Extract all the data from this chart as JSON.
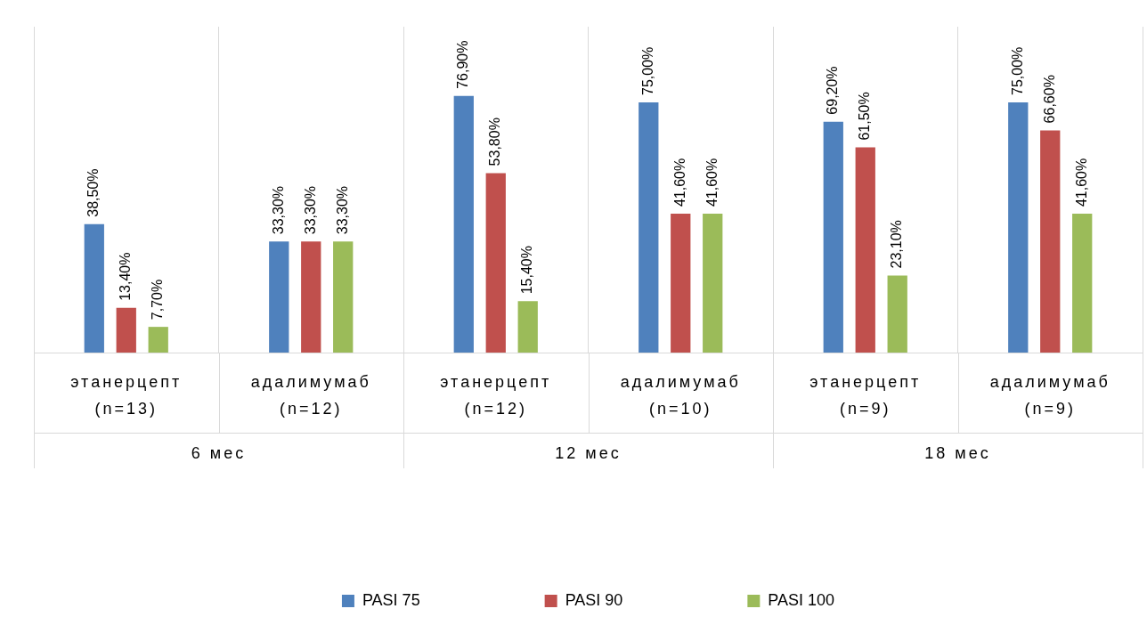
{
  "chart_data": {
    "type": "bar",
    "categories": [
      "этанерцепт (n=13)",
      "адалимумаб (n=12)",
      "этанерцепт (n=12)",
      "адалимумаб (n=10)",
      "этанерцепт (n=9)",
      "адалимумаб (n=9)"
    ],
    "annotations": [
      "6 мес",
      "12 мес",
      "18 мес"
    ],
    "series": [
      {
        "name": "PASI 75",
        "color": "#4f81bd",
        "values": [
          38.5,
          33.3,
          76.9,
          75.0,
          69.2,
          75.0
        ],
        "value_labels": [
          "38,50%",
          "33,30%",
          "76,90%",
          "75,00%",
          "69,20%",
          "75,00%"
        ]
      },
      {
        "name": "PASI 90",
        "color": "#c0504d",
        "values": [
          13.4,
          33.3,
          53.8,
          41.6,
          61.5,
          66.6
        ],
        "value_labels": [
          "13,40%",
          "33,30%",
          "53,80%",
          "41,60%",
          "61,50%",
          "66,60%"
        ]
      },
      {
        "name": "PASI 100",
        "color": "#9bbb59",
        "values": [
          7.7,
          33.3,
          15.4,
          41.6,
          23.1,
          41.6
        ],
        "value_labels": [
          "7,70%",
          "33,30%",
          "15,40%",
          "41,60%",
          "23,10%",
          "41,60%"
        ]
      }
    ],
    "grid": "x",
    "legend": "bottom",
    "tick_labels": "x"
  }
}
